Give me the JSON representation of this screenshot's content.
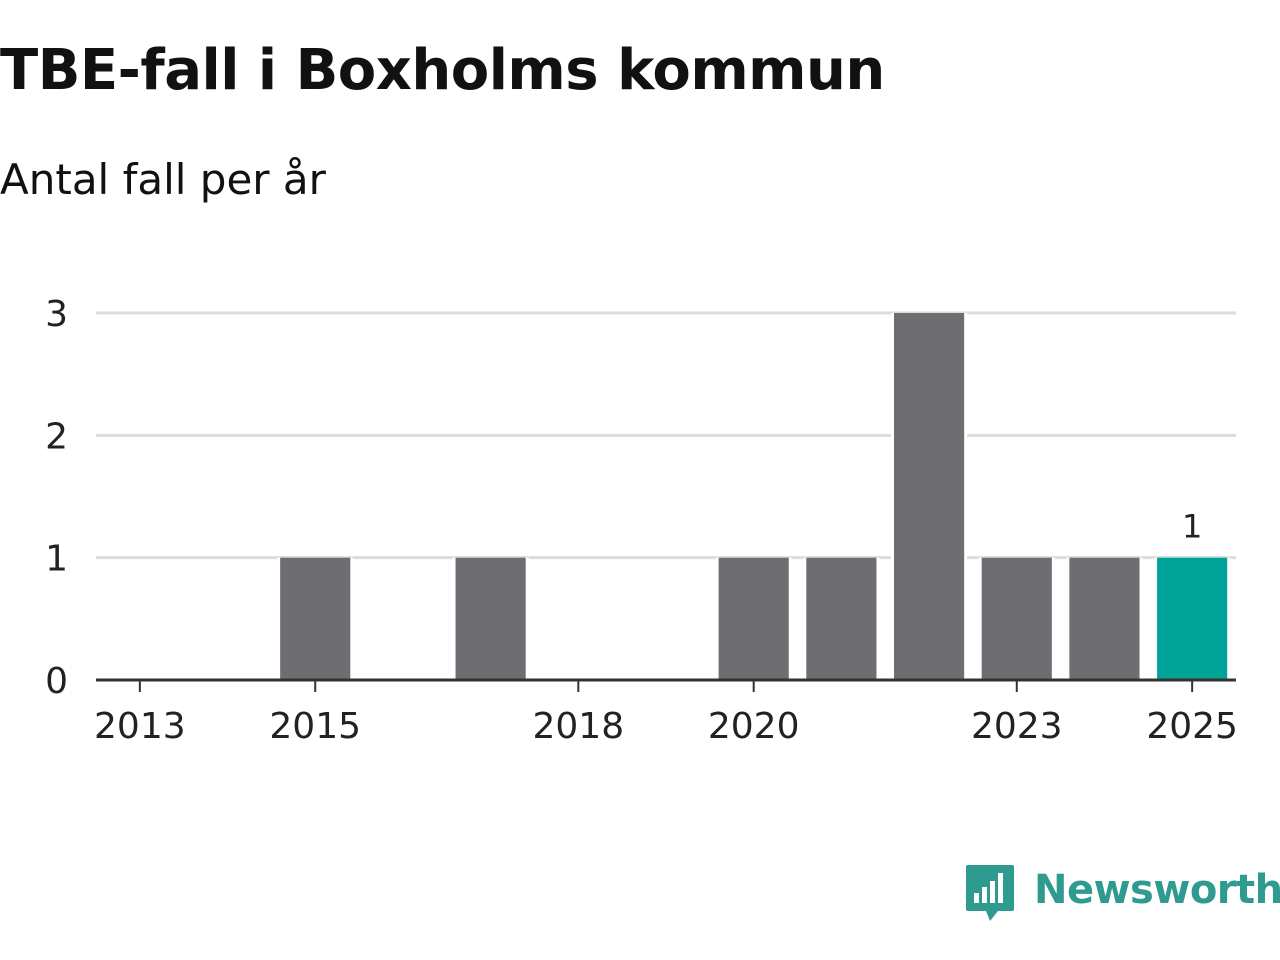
{
  "chart_data": {
    "type": "bar",
    "title": "TBE-fall i Boxholms kommun",
    "subtitle": "Antal fall per år",
    "xlabel": "",
    "ylabel": "",
    "categories": [
      2013,
      2014,
      2015,
      2016,
      2017,
      2018,
      2019,
      2020,
      2021,
      2022,
      2023,
      2024,
      2025
    ],
    "values": [
      0,
      0,
      1,
      0,
      1,
      0,
      0,
      1,
      1,
      3,
      1,
      1,
      1
    ],
    "x_tick_labels": [
      "2013",
      "2015",
      "2018",
      "2020",
      "2023",
      "2025"
    ],
    "y_ticks": [
      0,
      1,
      2,
      3
    ],
    "ylim": [
      0,
      3
    ],
    "grid": true,
    "highlight_category": 2025,
    "data_labels": [
      {
        "category": 2025,
        "text": "1"
      }
    ],
    "colors": {
      "bar": "#6e6d72",
      "highlight": "#00a398",
      "grid": "#dcdcdc",
      "axis": "#333333",
      "text": "#222222"
    }
  },
  "brand": {
    "name": "Newsworthy",
    "color": "#2e9a90"
  }
}
